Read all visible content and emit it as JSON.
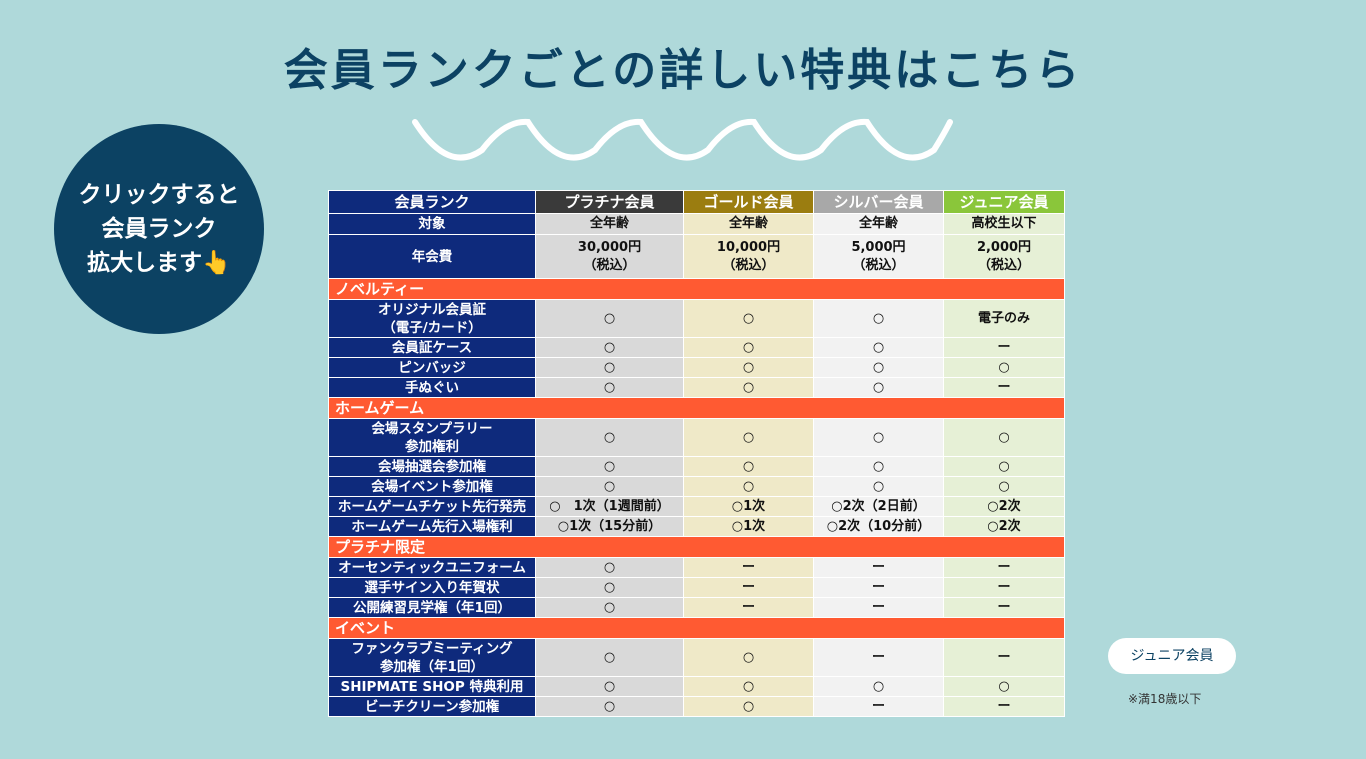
{
  "title": "会員ランクごとの詳しい特典はこちら",
  "click_note": {
    "line1": "クリックすると",
    "line2": "会員ランク",
    "line3": "拡大します👆"
  },
  "table": {
    "header": {
      "label": "会員ランク",
      "platinum": "プラチナ会員",
      "gold": "ゴールド会員",
      "silver": "シルバー会員",
      "junior": "ジュニア会員"
    },
    "target": {
      "label": "対象",
      "values": [
        "全年齢",
        "全年齢",
        "全年齢",
        "高校生以下"
      ]
    },
    "fee": {
      "label": "年会費",
      "values": [
        {
          "amount": "30,000円",
          "tax": "（税込）"
        },
        {
          "amount": "10,000円",
          "tax": "（税込）"
        },
        {
          "amount": "5,000円",
          "tax": "（税込）"
        },
        {
          "amount": "2,000円",
          "tax": "（税込）"
        }
      ]
    },
    "sections": [
      {
        "name": "ノベルティー",
        "rows": [
          {
            "label1": "オリジナル会員証",
            "label2": "（電子/カード）",
            "values": [
              "○",
              "○",
              "○",
              "電子のみ"
            ]
          },
          {
            "label1": "会員証ケース",
            "values": [
              "○",
              "○",
              "○",
              "ー"
            ]
          },
          {
            "label1": "ピンバッジ",
            "values": [
              "○",
              "○",
              "○",
              "○"
            ]
          },
          {
            "label1": "手ぬぐい",
            "values": [
              "○",
              "○",
              "○",
              "ー"
            ]
          }
        ]
      },
      {
        "name": "ホームゲーム",
        "rows": [
          {
            "label1": "会場スタンプラリー",
            "label2": "参加権利",
            "values": [
              "○",
              "○",
              "○",
              "○"
            ]
          },
          {
            "label1": "会場抽選会参加権",
            "values": [
              "○",
              "○",
              "○",
              "○"
            ]
          },
          {
            "label1": "会場イベント参加権",
            "values": [
              "○",
              "○",
              "○",
              "○"
            ]
          },
          {
            "label1": "ホームゲームチケット先行発売",
            "values": [
              "○　1次（1週間前）",
              "○1次",
              "○2次（2日前）",
              "○2次"
            ]
          },
          {
            "label1": "ホームゲーム先行入場権利",
            "values": [
              "○1次（15分前）",
              "○1次",
              "○2次（10分前）",
              "○2次"
            ]
          }
        ]
      },
      {
        "name": "プラチナ限定",
        "rows": [
          {
            "label1": "オーセンティックユニフォーム",
            "values": [
              "○",
              "ー",
              "ー",
              "ー"
            ]
          },
          {
            "label1": "選手サイン入り年賀状",
            "values": [
              "○",
              "ー",
              "ー",
              "ー"
            ]
          },
          {
            "label1": "公開練習見学権（年1回）",
            "values": [
              "○",
              "ー",
              "ー",
              "ー"
            ]
          }
        ]
      },
      {
        "name": "イベント",
        "rows": [
          {
            "label1": "ファンクラブミーティング",
            "label2": "参加権（年1回）",
            "values": [
              "○",
              "○",
              "ー",
              "ー"
            ]
          },
          {
            "label1": "SHIPMATE SHOP 特典利用",
            "values": [
              "○",
              "○",
              "○",
              "○"
            ]
          },
          {
            "label1": "ビーチクリーン参加権",
            "values": [
              "○",
              "○",
              "ー",
              "ー"
            ]
          }
        ]
      }
    ]
  },
  "junior_badge": "ジュニア会員",
  "note": "※満18歳以下",
  "colors": {
    "background": "#afd9da",
    "title": "#0c4263",
    "label_column": "#0e2a7c",
    "section": "#ff5a32",
    "fee_red": "#e8141c"
  }
}
